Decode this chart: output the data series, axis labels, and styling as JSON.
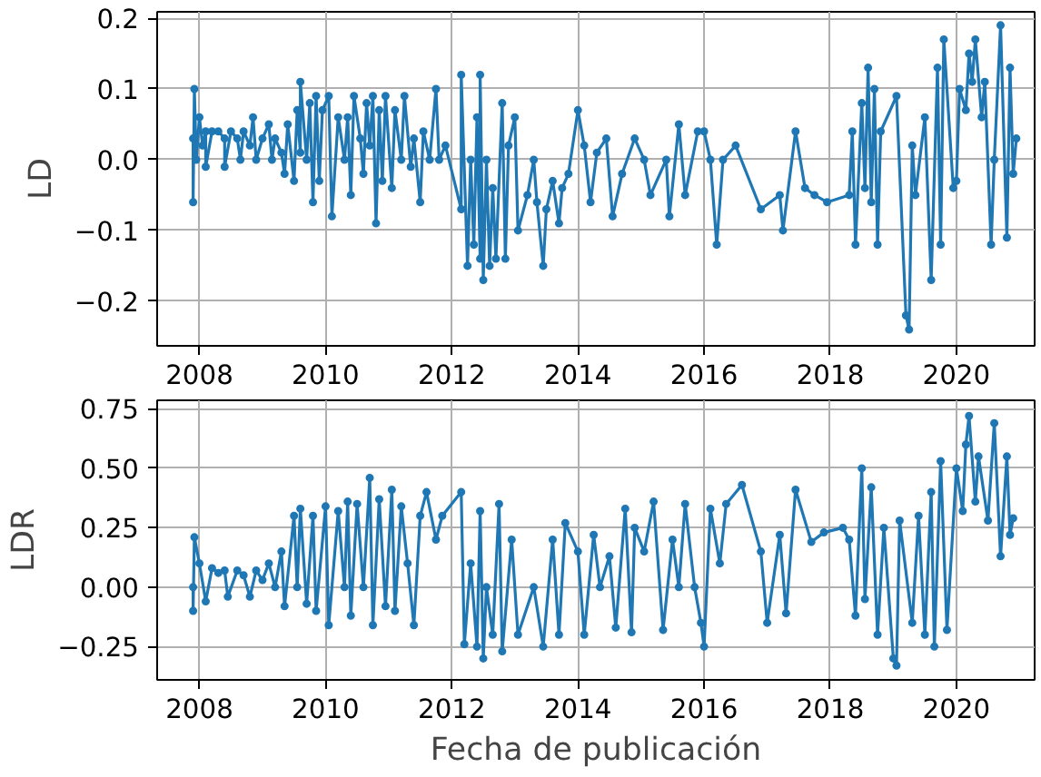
{
  "chart_data": [
    {
      "type": "line",
      "ylabel": "LD",
      "marker": "circle",
      "line_style": "solid",
      "grid": true,
      "color": "#1f77b4",
      "xlim": [
        2007.33,
        2021.24
      ],
      "ylim": [
        -0.263,
        0.209
      ],
      "xticks": [
        2008,
        2010,
        2012,
        2014,
        2016,
        2018,
        2020
      ],
      "yticks": [
        {
          "value": -0.2,
          "label": "−0.2"
        },
        {
          "value": -0.1,
          "label": "−0.1"
        },
        {
          "value": 0.0,
          "label": "0.0"
        },
        {
          "value": 0.1,
          "label": "0.1"
        },
        {
          "value": 0.2,
          "label": "0.2"
        }
      ],
      "x": [
        2007.9,
        2007.9,
        2007.92,
        2007.95,
        2008.0,
        2008.05,
        2008.1,
        2008.1,
        2008.2,
        2008.3,
        2008.4,
        2008.4,
        2008.5,
        2008.6,
        2008.65,
        2008.7,
        2008.8,
        2008.85,
        2008.9,
        2009.0,
        2009.1,
        2009.15,
        2009.2,
        2009.3,
        2009.35,
        2009.4,
        2009.5,
        2009.55,
        2009.6,
        2009.6,
        2009.7,
        2009.75,
        2009.8,
        2009.85,
        2009.9,
        2009.95,
        2010.05,
        2010.1,
        2010.2,
        2010.3,
        2010.35,
        2010.4,
        2010.45,
        2010.55,
        2010.6,
        2010.65,
        2010.7,
        2010.75,
        2010.8,
        2010.85,
        2010.9,
        2010.95,
        2011.05,
        2011.1,
        2011.2,
        2011.25,
        2011.35,
        2011.4,
        2011.5,
        2011.55,
        2011.65,
        2011.75,
        2011.8,
        2011.9,
        2012.15,
        2012.15,
        2012.25,
        2012.3,
        2012.35,
        2012.4,
        2012.45,
        2012.45,
        2012.5,
        2012.55,
        2012.6,
        2012.65,
        2012.7,
        2012.8,
        2012.85,
        2012.9,
        2013.0,
        2013.05,
        2013.2,
        2013.3,
        2013.35,
        2013.45,
        2013.5,
        2013.6,
        2013.7,
        2013.75,
        2013.85,
        2014.0,
        2014.1,
        2014.2,
        2014.3,
        2014.45,
        2014.55,
        2014.7,
        2014.9,
        2015.05,
        2015.15,
        2015.4,
        2015.45,
        2015.6,
        2015.7,
        2015.9,
        2016.0,
        2016.1,
        2016.2,
        2016.3,
        2016.5,
        2016.9,
        2017.2,
        2017.25,
        2017.45,
        2017.6,
        2017.75,
        2017.95,
        2018.3,
        2018.35,
        2018.4,
        2018.5,
        2018.55,
        2018.6,
        2018.65,
        2018.7,
        2018.75,
        2018.8,
        2019.05,
        2019.2,
        2019.25,
        2019.3,
        2019.35,
        2019.5,
        2019.6,
        2019.7,
        2019.75,
        2019.8,
        2019.95,
        2020.0,
        2020.05,
        2020.15,
        2020.2,
        2020.25,
        2020.3,
        2020.4,
        2020.45,
        2020.55,
        2020.6,
        2020.7,
        2020.8,
        2020.85,
        2020.9,
        2020.95
      ],
      "values": [
        0.03,
        -0.06,
        0.1,
        0.0,
        0.06,
        0.02,
        0.04,
        -0.01,
        0.04,
        0.04,
        0.03,
        -0.01,
        0.04,
        0.03,
        0.0,
        0.04,
        0.02,
        0.06,
        0.0,
        0.03,
        0.05,
        0.0,
        0.03,
        0.01,
        -0.02,
        0.05,
        -0.03,
        0.07,
        0.01,
        0.11,
        0.0,
        0.08,
        -0.06,
        0.09,
        -0.03,
        0.07,
        0.09,
        -0.08,
        0.06,
        0.0,
        0.06,
        -0.05,
        0.09,
        0.03,
        -0.02,
        0.08,
        0.02,
        0.09,
        -0.09,
        0.07,
        -0.03,
        0.09,
        -0.04,
        0.07,
        0.0,
        0.09,
        -0.01,
        0.03,
        -0.06,
        0.04,
        0.0,
        0.1,
        0.0,
        0.02,
        -0.07,
        0.12,
        -0.15,
        0.0,
        -0.12,
        0.06,
        -0.14,
        0.12,
        -0.17,
        0.0,
        -0.15,
        -0.04,
        -0.14,
        0.08,
        -0.14,
        0.02,
        0.06,
        -0.1,
        -0.05,
        0.0,
        -0.06,
        -0.15,
        -0.07,
        -0.03,
        -0.09,
        -0.04,
        -0.02,
        0.07,
        0.02,
        -0.06,
        0.01,
        0.03,
        -0.08,
        -0.02,
        0.03,
        0.0,
        -0.05,
        0.0,
        -0.08,
        0.05,
        -0.05,
        0.04,
        0.04,
        0.0,
        -0.12,
        0.0,
        0.02,
        -0.07,
        -0.05,
        -0.1,
        0.04,
        -0.04,
        -0.05,
        -0.06,
        -0.05,
        0.04,
        -0.12,
        0.08,
        -0.04,
        0.13,
        -0.06,
        0.1,
        -0.12,
        0.04,
        0.09,
        -0.22,
        -0.24,
        0.02,
        -0.05,
        0.06,
        -0.17,
        0.13,
        -0.12,
        0.17,
        -0.04,
        -0.03,
        0.1,
        0.07,
        0.15,
        0.11,
        0.17,
        0.06,
        0.11,
        -0.12,
        0.0,
        0.19,
        -0.11,
        0.13,
        -0.02,
        0.03
      ]
    },
    {
      "type": "line",
      "ylabel": "LDR",
      "xlabel": "Fecha de publicación",
      "marker": "circle",
      "line_style": "solid",
      "grid": true,
      "color": "#1f77b4",
      "xlim": [
        2007.33,
        2021.24
      ],
      "ylim": [
        -0.39,
        0.786
      ],
      "xticks": [
        2008,
        2010,
        2012,
        2014,
        2016,
        2018,
        2020
      ],
      "yticks": [
        {
          "value": -0.25,
          "label": "−0.25"
        },
        {
          "value": 0.0,
          "label": "0.00"
        },
        {
          "value": 0.25,
          "label": "0.25"
        },
        {
          "value": 0.5,
          "label": "0.50"
        },
        {
          "value": 0.75,
          "label": "0.75"
        }
      ],
      "x": [
        2007.9,
        2007.9,
        2007.92,
        2008.0,
        2008.1,
        2008.2,
        2008.3,
        2008.4,
        2008.45,
        2008.6,
        2008.7,
        2008.8,
        2008.9,
        2009.0,
        2009.1,
        2009.2,
        2009.3,
        2009.35,
        2009.5,
        2009.55,
        2009.6,
        2009.7,
        2009.8,
        2009.85,
        2010.0,
        2010.05,
        2010.2,
        2010.3,
        2010.35,
        2010.4,
        2010.5,
        2010.6,
        2010.7,
        2010.75,
        2010.85,
        2010.95,
        2011.05,
        2011.1,
        2011.2,
        2011.3,
        2011.4,
        2011.5,
        2011.6,
        2011.75,
        2011.85,
        2012.15,
        2012.2,
        2012.3,
        2012.4,
        2012.45,
        2012.5,
        2012.55,
        2012.65,
        2012.75,
        2012.8,
        2012.95,
        2013.05,
        2013.3,
        2013.45,
        2013.6,
        2013.7,
        2013.8,
        2014.0,
        2014.1,
        2014.25,
        2014.35,
        2014.5,
        2014.6,
        2014.75,
        2014.85,
        2014.9,
        2015.05,
        2015.2,
        2015.35,
        2015.5,
        2015.6,
        2015.7,
        2015.85,
        2015.95,
        2016.0,
        2016.1,
        2016.25,
        2016.35,
        2016.6,
        2016.9,
        2017.0,
        2017.2,
        2017.3,
        2017.45,
        2017.7,
        2017.9,
        2018.2,
        2018.3,
        2018.4,
        2018.5,
        2018.55,
        2018.65,
        2018.75,
        2018.85,
        2019.0,
        2019.05,
        2019.1,
        2019.3,
        2019.4,
        2019.5,
        2019.6,
        2019.65,
        2019.75,
        2019.85,
        2020.0,
        2020.1,
        2020.15,
        2020.2,
        2020.3,
        2020.35,
        2020.5,
        2020.6,
        2020.7,
        2020.8,
        2020.85,
        2020.9
      ],
      "values": [
        0.0,
        -0.1,
        0.21,
        0.1,
        -0.06,
        0.08,
        0.06,
        0.07,
        -0.04,
        0.07,
        0.05,
        -0.04,
        0.07,
        0.03,
        0.1,
        0.0,
        0.15,
        -0.08,
        0.3,
        0.0,
        0.33,
        -0.07,
        0.3,
        -0.1,
        0.34,
        -0.16,
        0.32,
        0.0,
        0.36,
        -0.12,
        0.35,
        0.0,
        0.46,
        -0.16,
        0.37,
        -0.08,
        0.41,
        -0.1,
        0.34,
        0.1,
        -0.16,
        0.3,
        0.4,
        0.2,
        0.3,
        0.4,
        -0.24,
        0.1,
        -0.25,
        0.32,
        -0.3,
        0.0,
        -0.2,
        0.35,
        -0.27,
        0.2,
        -0.2,
        0.0,
        -0.25,
        0.2,
        -0.2,
        0.27,
        0.15,
        -0.2,
        0.22,
        0.0,
        0.13,
        -0.17,
        0.33,
        -0.19,
        0.25,
        0.15,
        0.36,
        -0.18,
        0.2,
        0.0,
        0.35,
        0.0,
        -0.15,
        -0.25,
        0.33,
        0.1,
        0.35,
        0.43,
        0.15,
        -0.15,
        0.22,
        -0.11,
        0.41,
        0.19,
        0.23,
        0.25,
        0.2,
        -0.12,
        0.5,
        -0.05,
        0.42,
        -0.2,
        0.25,
        -0.3,
        -0.33,
        0.28,
        -0.15,
        0.3,
        -0.2,
        0.4,
        -0.25,
        0.53,
        -0.18,
        0.5,
        0.32,
        0.6,
        0.72,
        0.36,
        0.55,
        0.28,
        0.69,
        0.13,
        0.55,
        0.22,
        0.29
      ]
    }
  ]
}
